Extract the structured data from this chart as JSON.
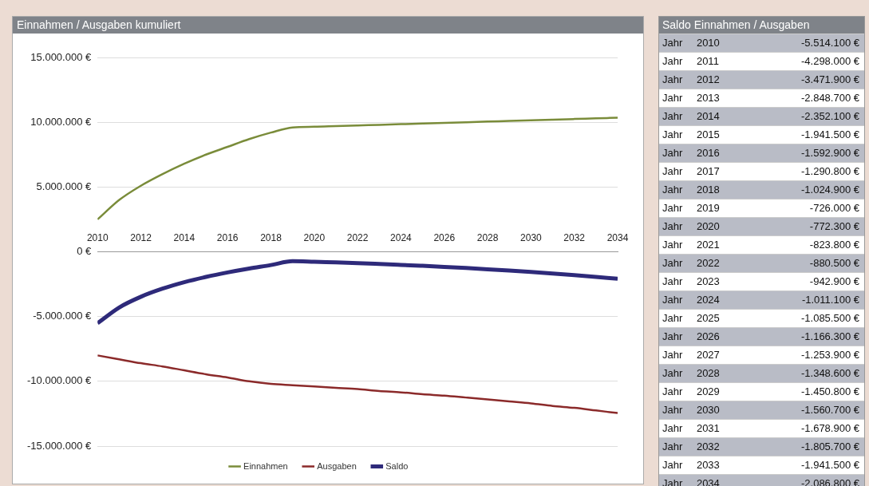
{
  "chart_data": [
    {
      "type": "line",
      "title": "Einnahmen / Ausgaben kumuliert",
      "x": [
        2010,
        2011,
        2012,
        2013,
        2014,
        2015,
        2016,
        2017,
        2018,
        2019,
        2020,
        2021,
        2022,
        2023,
        2024,
        2025,
        2026,
        2027,
        2028,
        2029,
        2030,
        2031,
        2032,
        2033,
        2034
      ],
      "series": [
        {
          "name": "Einnahmen",
          "color": "#7a8c3a",
          "values": [
            2500000,
            4000000,
            5100000,
            6000000,
            6800000,
            7500000,
            8100000,
            8700000,
            9200000,
            9600000,
            9650000,
            9700000,
            9750000,
            9800000,
            9850000,
            9900000,
            9950000,
            10000000,
            10050000,
            10100000,
            10150000,
            10200000,
            10250000,
            10300000,
            10350000
          ]
        },
        {
          "name": "Ausgaben",
          "color": "#8b2a2a",
          "values": [
            -8000000,
            -8300000,
            -8600000,
            -8850000,
            -9150000,
            -9450000,
            -9700000,
            -10000000,
            -10200000,
            -10300000,
            -10400000,
            -10500000,
            -10600000,
            -10750000,
            -10850000,
            -11000000,
            -11100000,
            -11250000,
            -11400000,
            -11550000,
            -11700000,
            -11900000,
            -12050000,
            -12250000,
            -12450000
          ]
        },
        {
          "name": "Saldo",
          "color": "#2e2a7a",
          "values": [
            -5514100,
            -4298000,
            -3471900,
            -2848700,
            -2352100,
            -1941500,
            -1592900,
            -1290800,
            -1024900,
            -726000,
            -772300,
            -823800,
            -880500,
            -942900,
            -1011100,
            -1085500,
            -1166300,
            -1253900,
            -1348600,
            -1450800,
            -1560700,
            -1678900,
            -1805700,
            -1941500,
            -2086800
          ]
        }
      ],
      "xlim": [
        2010,
        2034
      ],
      "xticks": [
        2010,
        2012,
        2014,
        2016,
        2018,
        2020,
        2022,
        2024,
        2026,
        2028,
        2030,
        2032,
        2034
      ],
      "ylim": [
        -15000000,
        15000000
      ],
      "yticks": [
        {
          "value": -15000000,
          "label": "-15.000.000 €"
        },
        {
          "value": -10000000,
          "label": "-10.000.000 €"
        },
        {
          "value": -5000000,
          "label": "-5.000.000 €"
        },
        {
          "value": 0,
          "label": "0 €"
        },
        {
          "value": 5000000,
          "label": "5.000.000 €"
        },
        {
          "value": 10000000,
          "label": "10.000.000 €"
        },
        {
          "value": 15000000,
          "label": "15.000.000 €"
        }
      ],
      "grid": "y",
      "legend": "bottom",
      "marker": "none",
      "line_style": "solid"
    },
    {
      "type": "other",
      "title": "Saldo Einnahmen / Ausgaben",
      "categories": [
        "Jahr 2010",
        "Jahr 2011",
        "Jahr 2012",
        "Jahr 2013",
        "Jahr 2014",
        "Jahr 2015",
        "Jahr 2016",
        "Jahr 2017",
        "Jahr 2018",
        "Jahr 2019",
        "Jahr 2020",
        "Jahr 2021",
        "Jahr 2022",
        "Jahr 2023",
        "Jahr 2024",
        "Jahr 2025",
        "Jahr 2026",
        "Jahr 2027",
        "Jahr 2028",
        "Jahr 2029",
        "Jahr 2030",
        "Jahr 2031",
        "Jahr 2032",
        "Jahr 2033",
        "Jahr 2034"
      ],
      "value_labels": [
        "-5.514.100 €",
        "-4.298.000 €",
        "-3.471.900 €",
        "-2.848.700 €",
        "-2.352.100 €",
        "-1.941.500 €",
        "-1.592.900 €",
        "-1.290.800 €",
        "-1.024.900 €",
        "-726.000 €",
        "-772.300 €",
        "-823.800 €",
        "-880.500 €",
        "-942.900 €",
        "-1.011.100 €",
        "-1.085.500 €",
        "-1.166.300 €",
        "-1.253.900 €",
        "-1.348.600 €",
        "-1.450.800 €",
        "-1.560.700 €",
        "-1.678.900 €",
        "-1.805.700 €",
        "-1.941.500 €",
        "-2.086.800 €"
      ]
    }
  ]
}
